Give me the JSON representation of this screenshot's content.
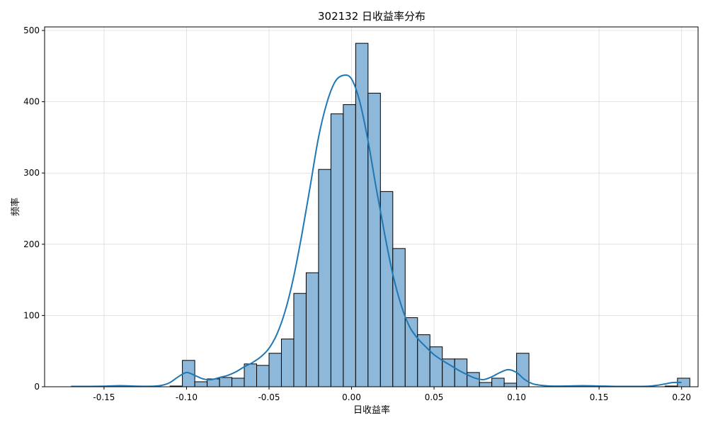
{
  "chart_data": {
    "type": "bar",
    "title": "302132 日收益率分布",
    "xlabel": "日收益率",
    "ylabel": "频率",
    "xlim": [
      -0.186,
      0.21
    ],
    "ylim": [
      0,
      505
    ],
    "grid": true,
    "x_ticks": [
      -0.15,
      -0.1,
      -0.05,
      0.0,
      0.05,
      0.1,
      0.15,
      0.2
    ],
    "x_tick_labels": [
      "-0.15",
      "-0.10",
      "-0.05",
      "0.00",
      "0.05",
      "0.10",
      "0.15",
      "0.20"
    ],
    "y_ticks": [
      0,
      100,
      200,
      300,
      400,
      500
    ],
    "y_tick_labels": [
      "0",
      "100",
      "200",
      "300",
      "400",
      "500"
    ],
    "bar_color": "#8db8d9",
    "edge_color": "#000000",
    "kde_color": "#1f77b4",
    "bins": [
      {
        "start": -0.17,
        "end": -0.1625,
        "count": 0
      },
      {
        "start": -0.1625,
        "end": -0.155,
        "count": 0
      },
      {
        "start": -0.155,
        "end": -0.1475,
        "count": 0
      },
      {
        "start": -0.1475,
        "end": -0.14,
        "count": 1
      },
      {
        "start": -0.14,
        "end": -0.1325,
        "count": 0
      },
      {
        "start": -0.1325,
        "end": -0.125,
        "count": 0
      },
      {
        "start": -0.125,
        "end": -0.1175,
        "count": 0
      },
      {
        "start": -0.1175,
        "end": -0.11,
        "count": 0
      },
      {
        "start": -0.11,
        "end": -0.1025,
        "count": 1
      },
      {
        "start": -0.1025,
        "end": -0.095,
        "count": 37
      },
      {
        "start": -0.095,
        "end": -0.0875,
        "count": 7
      },
      {
        "start": -0.0875,
        "end": -0.08,
        "count": 11
      },
      {
        "start": -0.08,
        "end": -0.0725,
        "count": 13
      },
      {
        "start": -0.0725,
        "end": -0.065,
        "count": 12
      },
      {
        "start": -0.065,
        "end": -0.0575,
        "count": 32
      },
      {
        "start": -0.0575,
        "end": -0.05,
        "count": 30
      },
      {
        "start": -0.05,
        "end": -0.0425,
        "count": 47
      },
      {
        "start": -0.0425,
        "end": -0.035,
        "count": 67
      },
      {
        "start": -0.035,
        "end": -0.0275,
        "count": 131
      },
      {
        "start": -0.0275,
        "end": -0.02,
        "count": 160
      },
      {
        "start": -0.02,
        "end": -0.0125,
        "count": 305
      },
      {
        "start": -0.0125,
        "end": -0.005,
        "count": 383
      },
      {
        "start": -0.005,
        "end": 0.0025,
        "count": 396
      },
      {
        "start": 0.0025,
        "end": 0.01,
        "count": 482
      },
      {
        "start": 0.01,
        "end": 0.0175,
        "count": 412
      },
      {
        "start": 0.0175,
        "end": 0.025,
        "count": 274
      },
      {
        "start": 0.025,
        "end": 0.0325,
        "count": 194
      },
      {
        "start": 0.0325,
        "end": 0.04,
        "count": 97
      },
      {
        "start": 0.04,
        "end": 0.0475,
        "count": 73
      },
      {
        "start": 0.0475,
        "end": 0.055,
        "count": 56
      },
      {
        "start": 0.055,
        "end": 0.0625,
        "count": 39
      },
      {
        "start": 0.0625,
        "end": 0.07,
        "count": 39
      },
      {
        "start": 0.07,
        "end": 0.0775,
        "count": 20
      },
      {
        "start": 0.0775,
        "end": 0.085,
        "count": 6
      },
      {
        "start": 0.085,
        "end": 0.0925,
        "count": 12
      },
      {
        "start": 0.0925,
        "end": 0.1,
        "count": 5
      },
      {
        "start": 0.1,
        "end": 0.1075,
        "count": 47
      },
      {
        "start": 0.1075,
        "end": 0.115,
        "count": 0
      },
      {
        "start": 0.115,
        "end": 0.1225,
        "count": 0
      },
      {
        "start": 0.1225,
        "end": 0.13,
        "count": 0
      },
      {
        "start": 0.13,
        "end": 0.1375,
        "count": 0
      },
      {
        "start": 0.1375,
        "end": 0.145,
        "count": 0
      },
      {
        "start": 0.145,
        "end": 0.1525,
        "count": 0
      },
      {
        "start": 0.1525,
        "end": 0.16,
        "count": 0
      },
      {
        "start": 0.16,
        "end": 0.1675,
        "count": 0
      },
      {
        "start": 0.1675,
        "end": 0.175,
        "count": 0
      },
      {
        "start": 0.175,
        "end": 0.1825,
        "count": 0
      },
      {
        "start": 0.1825,
        "end": 0.19,
        "count": 0
      },
      {
        "start": 0.19,
        "end": 0.1975,
        "count": 1
      },
      {
        "start": 0.1975,
        "end": 0.205,
        "count": 12
      }
    ],
    "kde": {
      "x": [
        -0.17,
        -0.16,
        -0.15,
        -0.14,
        -0.13,
        -0.12,
        -0.115,
        -0.11,
        -0.105,
        -0.1,
        -0.095,
        -0.09,
        -0.085,
        -0.08,
        -0.075,
        -0.07,
        -0.065,
        -0.06,
        -0.055,
        -0.05,
        -0.045,
        -0.04,
        -0.035,
        -0.03,
        -0.025,
        -0.02,
        -0.015,
        -0.01,
        -0.005,
        0.0,
        0.005,
        0.01,
        0.015,
        0.02,
        0.025,
        0.03,
        0.035,
        0.04,
        0.045,
        0.05,
        0.055,
        0.06,
        0.065,
        0.07,
        0.075,
        0.08,
        0.085,
        0.09,
        0.095,
        0.1,
        0.105,
        0.11,
        0.115,
        0.12,
        0.13,
        0.14,
        0.15,
        0.16,
        0.17,
        0.18,
        0.185,
        0.19,
        0.195,
        0.2
      ],
      "y": [
        0.5,
        0.5,
        0.8,
        1.5,
        0.8,
        0.8,
        2,
        6,
        14,
        20,
        16,
        11,
        10,
        13,
        16,
        21,
        28,
        34,
        42,
        54,
        75,
        108,
        155,
        215,
        282,
        350,
        398,
        428,
        437,
        432,
        400,
        345,
        278,
        215,
        158,
        115,
        85,
        68,
        56,
        45,
        37,
        30,
        23,
        17,
        12,
        10,
        14,
        20,
        24,
        20,
        10,
        4,
        2,
        1,
        1,
        1.5,
        1,
        0.5,
        0.5,
        0.8,
        2,
        4,
        6,
        6
      ]
    }
  }
}
